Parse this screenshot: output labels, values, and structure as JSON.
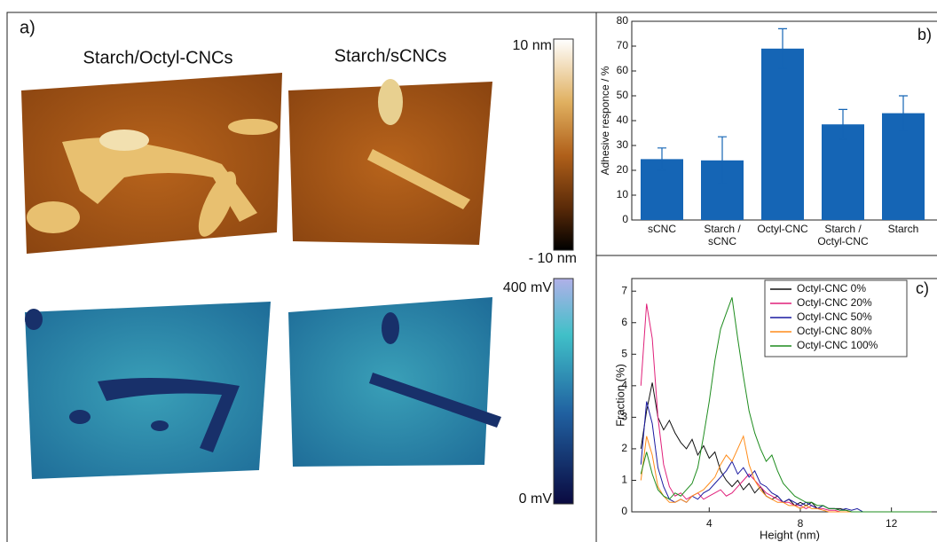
{
  "panel_a": {
    "label": "a)",
    "titles": [
      "Starch/Octyl-CNCs",
      "Starch/sCNCs"
    ],
    "height_scale": {
      "max": "10 nm",
      "min": "- 10 nm"
    },
    "potential_scale": {
      "max": "400 mV",
      "min": "0 mV"
    }
  },
  "chart_data": [
    {
      "type": "bar",
      "panel_label": "b)",
      "y_label": "Adhesive responce / %",
      "categories": [
        "sCNC",
        "Starch / sCNC",
        "Octyl-CNC",
        "Starch / Octyl-CNC",
        "Starch"
      ],
      "values": [
        24.5,
        24,
        69,
        38.5,
        43
      ],
      "errors": [
        4.5,
        9.5,
        8,
        6,
        7
      ],
      "color": "#1565b5",
      "ylim": [
        0,
        80
      ],
      "yticks": [
        0,
        10,
        20,
        30,
        40,
        50,
        60,
        70,
        80
      ]
    },
    {
      "type": "line",
      "panel_label": "c)",
      "x_label": "Height (nm)",
      "y_label": "Fraction (%)",
      "legend": "upper right",
      "x": [
        1.0,
        1.25,
        1.5,
        1.75,
        2.0,
        2.25,
        2.5,
        2.75,
        3.0,
        3.25,
        3.5,
        3.75,
        4.0,
        4.25,
        4.5,
        4.75,
        5.0,
        5.25,
        5.5,
        5.75,
        6.0,
        6.25,
        6.5,
        6.75,
        7.0,
        7.25,
        7.5,
        7.75,
        8.0,
        8.25,
        8.5,
        8.75,
        9.0,
        9.25,
        9.5,
        9.75,
        10.0,
        10.25,
        10.5,
        10.75,
        11.0,
        11.25,
        11.5,
        11.75,
        12.0,
        12.25,
        12.5,
        12.75,
        13.0,
        13.25,
        13.5,
        13.75
      ],
      "series": [
        {
          "name": "Octyl-CNC 0%",
          "color": "#111111",
          "values": [
            2.0,
            3.2,
            4.1,
            3.0,
            2.6,
            2.9,
            2.5,
            2.2,
            2.0,
            2.3,
            1.8,
            2.1,
            1.7,
            1.9,
            1.3,
            1.0,
            0.8,
            1.0,
            0.7,
            0.9,
            0.6,
            0.8,
            0.5,
            0.4,
            0.5,
            0.3,
            0.4,
            0.2,
            0.3,
            0.2,
            0.3,
            0.1,
            0.2,
            0.1,
            0.1,
            0.1,
            0.05,
            0,
            0,
            0,
            0,
            0,
            0,
            0,
            0,
            0,
            0,
            0,
            0,
            0,
            0,
            0
          ]
        },
        {
          "name": "Octyl-CNC 20%",
          "color": "#e0207a",
          "values": [
            4.0,
            6.6,
            5.5,
            3.0,
            1.5,
            0.8,
            0.5,
            0.6,
            0.4,
            0.5,
            0.6,
            0.4,
            0.5,
            0.6,
            0.7,
            0.5,
            0.6,
            0.8,
            1.0,
            1.2,
            1.0,
            0.8,
            0.6,
            0.5,
            0.4,
            0.3,
            0.3,
            0.2,
            0.2,
            0.1,
            0.2,
            0.1,
            0.1,
            0.05,
            0.05,
            0,
            0,
            0,
            0,
            0,
            0,
            0,
            0,
            0,
            0,
            0,
            0,
            0,
            0,
            0,
            0,
            0
          ]
        },
        {
          "name": "Octyl-CNC 50%",
          "color": "#1a1aa0",
          "values": [
            1.5,
            3.5,
            2.8,
            1.4,
            0.8,
            0.4,
            0.3,
            0.4,
            0.3,
            0.5,
            0.4,
            0.6,
            0.7,
            0.9,
            1.1,
            1.3,
            1.6,
            1.2,
            1.4,
            1.1,
            1.3,
            0.9,
            0.8,
            0.6,
            0.5,
            0.3,
            0.4,
            0.3,
            0.2,
            0.3,
            0.2,
            0.1,
            0.2,
            0.1,
            0.1,
            0.05,
            0.1,
            0.05,
            0.1,
            0,
            0,
            0,
            0,
            0,
            0,
            0,
            0,
            0,
            0,
            0,
            0,
            0
          ]
        },
        {
          "name": "Octyl-CNC 80%",
          "color": "#ff8c1a",
          "values": [
            1.0,
            2.4,
            1.8,
            0.8,
            0.5,
            0.3,
            0.3,
            0.4,
            0.3,
            0.5,
            0.6,
            0.7,
            0.9,
            1.1,
            1.5,
            1.8,
            1.6,
            2.0,
            2.4,
            1.5,
            1.0,
            0.7,
            0.5,
            0.4,
            0.3,
            0.3,
            0.2,
            0.2,
            0.1,
            0.2,
            0.1,
            0.1,
            0.05,
            0,
            0,
            0,
            0,
            0,
            0,
            0,
            0,
            0,
            0,
            0,
            0,
            0,
            0,
            0,
            0,
            0,
            0,
            0
          ]
        },
        {
          "name": "Octyl-CNC 100%",
          "color": "#1e8c1e",
          "values": [
            1.2,
            1.9,
            1.2,
            0.7,
            0.5,
            0.4,
            0.6,
            0.5,
            0.7,
            0.9,
            1.4,
            2.4,
            3.5,
            4.8,
            5.8,
            6.3,
            6.8,
            5.5,
            4.3,
            3.2,
            2.5,
            2.0,
            1.6,
            1.8,
            1.3,
            0.9,
            0.7,
            0.5,
            0.4,
            0.3,
            0.3,
            0.2,
            0.2,
            0.1,
            0.1,
            0.05,
            0.05,
            0,
            0,
            0,
            0,
            0,
            0,
            0,
            0,
            0,
            0,
            0,
            0,
            0,
            0,
            0
          ]
        }
      ],
      "xlim": [
        0.6,
        14.0
      ],
      "xticks": [
        4,
        8,
        12
      ],
      "ylim": [
        0,
        7.4
      ],
      "yticks": [
        0,
        1,
        2,
        3,
        4,
        5,
        6,
        7
      ]
    }
  ]
}
